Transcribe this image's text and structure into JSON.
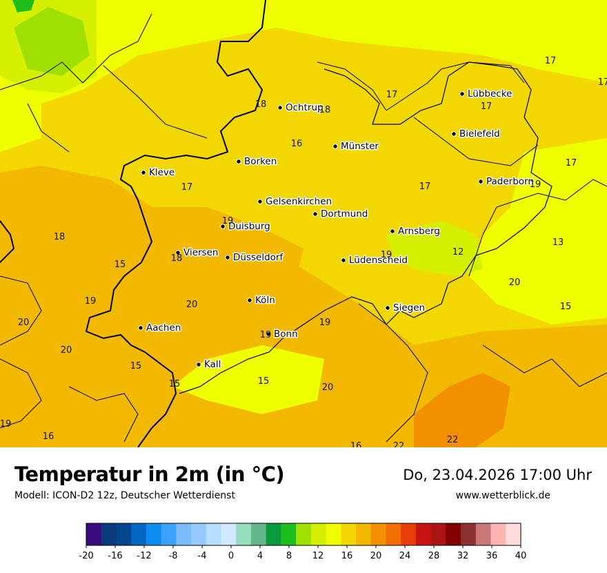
{
  "title": "Temperatur in 2m (in °C)",
  "model": "Modell: ICON-D2 12z, Deutscher Wetterdienst",
  "datetime": "Do, 23.04.2026 17:00 Uhr",
  "site": "www.wetterblick.de",
  "cities": [
    {
      "name": "Lübbecke"
    },
    {
      "name": "Ochtrup"
    },
    {
      "name": "Bielefeld"
    },
    {
      "name": "Münster"
    },
    {
      "name": "Kleve"
    },
    {
      "name": "Borken"
    },
    {
      "name": "Paderborn"
    },
    {
      "name": "Gelsenkirchen"
    },
    {
      "name": "Dortmund"
    },
    {
      "name": "Duisburg"
    },
    {
      "name": "Arnsberg"
    },
    {
      "name": "Viersen"
    },
    {
      "name": "Düsseldorf"
    },
    {
      "name": "Lüdenscheid"
    },
    {
      "name": "Köln"
    },
    {
      "name": "Siegen"
    },
    {
      "name": "Aachen"
    },
    {
      "name": "Bonn"
    },
    {
      "name": "Kall"
    }
  ],
  "values": [
    "17",
    "17",
    "18",
    "18",
    "17",
    "16",
    "17",
    "17",
    "17",
    "17",
    "19",
    "13",
    "19",
    "12",
    "18",
    "18",
    "15",
    "20",
    "19",
    "20",
    "15",
    "19",
    "19",
    "19",
    "15",
    "15",
    "15",
    "20",
    "20",
    "20",
    "19",
    "16",
    "16",
    "22",
    "22"
  ],
  "legend": {
    "colors": [
      "#3b0a7c",
      "#0a3a7c",
      "#05468c",
      "#0066c0",
      "#0a8cf0",
      "#3ca2ff",
      "#78bcff",
      "#96caff",
      "#b6dcff",
      "#d2e8ff",
      "#96dcbe",
      "#64b48c",
      "#0a9c3c",
      "#1ebe1e",
      "#a0e000",
      "#d4f000",
      "#f0ff00",
      "#f2d700",
      "#f2b900",
      "#f29000",
      "#f26e00",
      "#e63c0a",
      "#c81414",
      "#aa1414",
      "#820000",
      "#8c3232",
      "#c87878",
      "#ffb4b4",
      "#ffdcdc"
    ],
    "ticks": [
      "-20",
      "-16",
      "-12",
      "-8",
      "-4",
      "0",
      "4",
      "8",
      "12",
      "16",
      "20",
      "24",
      "28",
      "32",
      "36",
      "40"
    ]
  }
}
